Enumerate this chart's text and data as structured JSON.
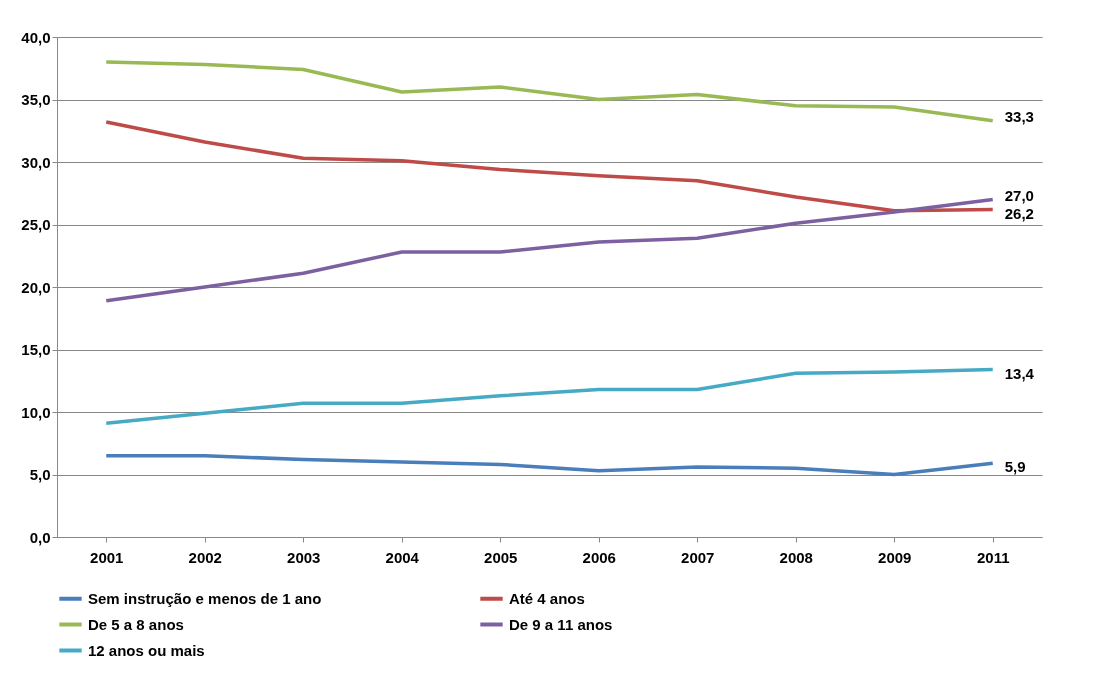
{
  "chart_data": {
    "type": "line",
    "categories": [
      "2001",
      "2002",
      "2003",
      "2004",
      "2005",
      "2006",
      "2007",
      "2008",
      "2009",
      "2011"
    ],
    "series": [
      {
        "name": "Sem instrução e menos de 1 ano",
        "color": "#4a7ebb",
        "values": [
          6.5,
          6.5,
          6.2,
          6.0,
          5.8,
          5.3,
          5.6,
          5.5,
          5.0,
          5.9
        ],
        "value_labels": [
          null,
          null,
          null,
          null,
          null,
          null,
          null,
          null,
          null,
          "5,9"
        ]
      },
      {
        "name": "Até 4 anos",
        "color": "#be4b48",
        "values": [
          33.2,
          31.6,
          30.3,
          30.1,
          29.4,
          28.9,
          28.5,
          27.2,
          26.1,
          26.2
        ],
        "value_labels": [
          null,
          null,
          null,
          null,
          null,
          null,
          null,
          null,
          null,
          "26,2"
        ]
      },
      {
        "name": "De 5 a 8 anos",
        "color": "#98b954",
        "values": [
          38.0,
          37.8,
          37.4,
          35.6,
          36.0,
          35.0,
          35.4,
          34.5,
          34.4,
          33.3
        ],
        "value_labels": [
          null,
          null,
          null,
          null,
          null,
          null,
          null,
          null,
          null,
          "33,3"
        ]
      },
      {
        "name": "De 9 a 11 anos",
        "color": "#7d60a0",
        "values": [
          18.9,
          20.0,
          21.1,
          22.8,
          22.8,
          23.6,
          23.9,
          25.1,
          26.0,
          27.0
        ],
        "value_labels": [
          null,
          null,
          null,
          null,
          null,
          null,
          null,
          null,
          null,
          "27,0"
        ]
      },
      {
        "name": "12 anos ou mais",
        "color": "#46aac5",
        "values": [
          9.1,
          9.9,
          10.7,
          10.7,
          11.3,
          11.8,
          11.8,
          13.1,
          13.2,
          13.4
        ],
        "value_labels": [
          null,
          null,
          null,
          null,
          null,
          null,
          null,
          null,
          null,
          "13,4"
        ]
      }
    ],
    "ylim": [
      0,
      40
    ],
    "yticks": [
      {
        "value": 0,
        "label": "0,0"
      },
      {
        "value": 5,
        "label": "5,0"
      },
      {
        "value": 10,
        "label": "10,0"
      },
      {
        "value": 15,
        "label": "15,0"
      },
      {
        "value": 20,
        "label": "20,0"
      },
      {
        "value": 25,
        "label": "25,0"
      },
      {
        "value": 30,
        "label": "30,0"
      },
      {
        "value": 35,
        "label": "35,0"
      },
      {
        "value": 40,
        "label": "40,0"
      }
    ],
    "grid": "y",
    "legend": "bottom"
  }
}
